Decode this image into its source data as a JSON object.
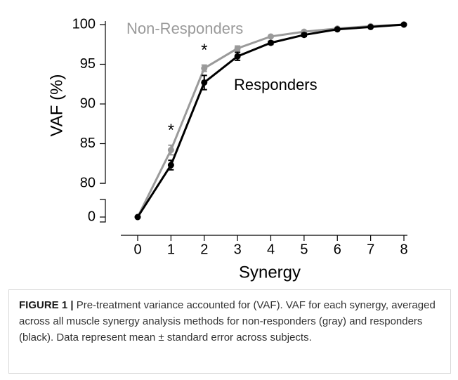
{
  "chart_data": {
    "type": "line",
    "xlabel": "Synergy",
    "ylabel": "VAF (%)",
    "x": [
      0,
      1,
      2,
      3,
      4,
      5,
      6,
      7,
      8
    ],
    "xlim": [
      0,
      8
    ],
    "xticks": [
      0,
      1,
      2,
      3,
      4,
      5,
      6,
      7,
      8
    ],
    "ylim": [
      0,
      100
    ],
    "y_break": [
      0,
      80
    ],
    "yticks": [
      0,
      80,
      85,
      90,
      95,
      100
    ],
    "series": [
      {
        "name": "Non-Responders",
        "color": "#9a9a9a",
        "values": [
          0,
          84.2,
          94.5,
          97.0,
          98.5,
          99.1,
          99.5,
          99.8,
          100
        ],
        "errors": [
          0,
          0.6,
          0.4,
          0.3,
          0.1,
          0.1,
          0.1,
          0.05,
          0.02
        ]
      },
      {
        "name": "Responders",
        "color": "#000000",
        "values": [
          0,
          82.3,
          92.7,
          96.0,
          97.7,
          98.7,
          99.4,
          99.7,
          100
        ],
        "errors": [
          0,
          0.6,
          0.9,
          0.5,
          0.2,
          0.2,
          0.1,
          0.1,
          0.03
        ]
      }
    ],
    "annotations": [
      {
        "text": "*",
        "x": 1
      },
      {
        "text": "*",
        "x": 2
      }
    ]
  },
  "caption": {
    "label": "FIGURE 1 |",
    "text": "Pre-treatment variance accounted for (VAF). VAF for each synergy, averaged across all muscle synergy analysis methods for non-responders (gray) and responders (black). Data represent mean ± standard error across subjects."
  }
}
